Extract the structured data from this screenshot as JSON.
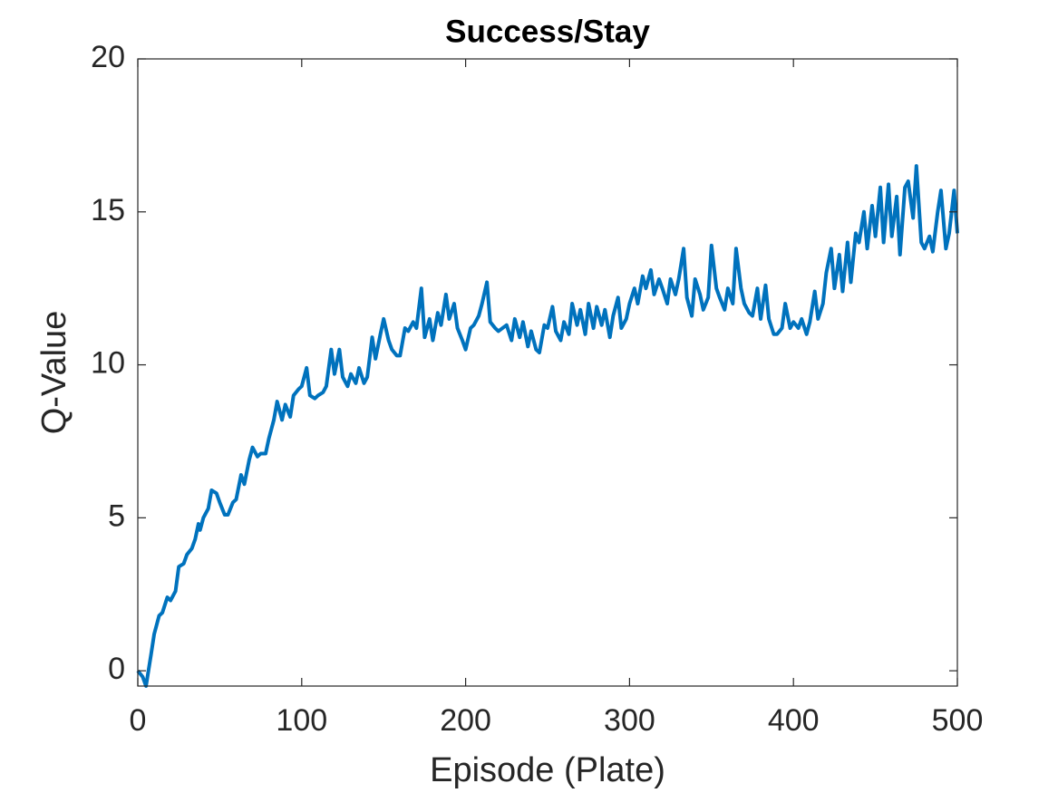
{
  "chart_data": {
    "type": "line",
    "title": "Success/Stay",
    "xlabel": "Episode (Plate)",
    "ylabel": "Q-Value",
    "xlim": [
      0,
      500
    ],
    "ylim": [
      -0.5,
      20
    ],
    "xticks": [
      0,
      100,
      200,
      300,
      400,
      500
    ],
    "yticks": [
      0,
      5,
      10,
      15,
      20
    ],
    "box": true,
    "x": [
      0,
      3,
      5,
      8,
      10,
      13,
      15,
      18,
      20,
      23,
      25,
      28,
      30,
      33,
      35,
      37,
      38,
      40,
      43,
      45,
      48,
      50,
      53,
      55,
      58,
      60,
      63,
      65,
      68,
      70,
      73,
      75,
      78,
      80,
      83,
      85,
      88,
      90,
      93,
      95,
      98,
      100,
      103,
      105,
      108,
      110,
      113,
      115,
      118,
      120,
      123,
      125,
      128,
      130,
      133,
      135,
      138,
      140,
      143,
      145,
      148,
      150,
      153,
      155,
      158,
      160,
      163,
      165,
      168,
      170,
      173,
      175,
      178,
      180,
      183,
      185,
      188,
      190,
      193,
      195,
      198,
      200,
      203,
      205,
      208,
      210,
      213,
      215,
      218,
      220,
      225,
      228,
      230,
      233,
      235,
      238,
      240,
      243,
      245,
      248,
      250,
      253,
      255,
      258,
      260,
      263,
      265,
      268,
      270,
      273,
      275,
      278,
      280,
      283,
      285,
      288,
      290,
      293,
      295,
      298,
      300,
      303,
      305,
      308,
      310,
      313,
      315,
      318,
      320,
      323,
      325,
      328,
      330,
      333,
      335,
      338,
      340,
      343,
      345,
      348,
      350,
      353,
      355,
      358,
      360,
      363,
      365,
      368,
      370,
      373,
      375,
      378,
      380,
      383,
      385,
      388,
      390,
      393,
      395,
      398,
      400,
      403,
      405,
      408,
      410,
      413,
      415,
      418,
      420,
      423,
      425,
      428,
      430,
      433,
      435,
      438,
      440,
      443,
      445,
      448,
      450,
      453,
      455,
      458,
      460,
      463,
      465,
      468,
      470,
      473,
      475,
      478,
      480,
      483,
      485,
      488,
      490,
      493,
      495,
      498,
      500
    ],
    "series": [
      {
        "name": "Q-Value",
        "color": "#0072BD",
        "values": [
          0,
          -0.2,
          -0.5,
          0.5,
          1.2,
          1.8,
          1.9,
          2.4,
          2.3,
          2.6,
          3.4,
          3.5,
          3.8,
          4.0,
          4.3,
          4.8,
          4.6,
          5.0,
          5.3,
          5.9,
          5.8,
          5.5,
          5.1,
          5.1,
          5.5,
          5.6,
          6.4,
          6.1,
          6.9,
          7.3,
          7.0,
          7.1,
          7.1,
          7.6,
          8.2,
          8.8,
          8.2,
          8.7,
          8.3,
          9.0,
          9.2,
          9.3,
          9.9,
          9.0,
          8.9,
          9.0,
          9.1,
          9.3,
          10.5,
          9.7,
          10.5,
          9.6,
          9.3,
          9.7,
          9.4,
          9.9,
          9.4,
          9.6,
          10.9,
          10.2,
          11.0,
          11.5,
          10.8,
          10.5,
          10.3,
          10.3,
          11.2,
          11.1,
          11.4,
          11.2,
          12.5,
          10.9,
          11.5,
          10.8,
          11.7,
          11.3,
          12.3,
          11.5,
          12.0,
          11.2,
          10.8,
          10.5,
          11.2,
          11.3,
          11.6,
          12.0,
          12.7,
          11.4,
          11.2,
          11.1,
          11.3,
          10.8,
          11.5,
          10.9,
          11.4,
          10.6,
          11.1,
          10.5,
          10.4,
          11.3,
          11.2,
          11.9,
          11.1,
          10.8,
          11.4,
          11.0,
          12.0,
          11.3,
          11.8,
          11.0,
          12.0,
          11.2,
          11.9,
          11.3,
          11.8,
          10.9,
          11.6,
          12.2,
          11.2,
          11.5,
          12.0,
          12.5,
          12.0,
          12.9,
          12.5,
          13.1,
          12.3,
          12.8,
          12.5,
          12.0,
          12.8,
          12.3,
          12.8,
          13.8,
          12.2,
          11.6,
          12.8,
          12.3,
          11.8,
          12.2,
          13.9,
          12.5,
          12.2,
          11.8,
          12.5,
          12.0,
          13.8,
          12.5,
          12.0,
          11.7,
          11.6,
          12.5,
          11.5,
          12.6,
          11.5,
          11.0,
          11.0,
          11.2,
          12.0,
          11.2,
          11.4,
          11.2,
          11.5,
          11.0,
          11.4,
          12.4,
          11.5,
          12.0,
          13.0,
          13.8,
          12.5,
          13.6,
          12.4,
          14.0,
          12.7,
          14.3,
          14.0,
          15.0,
          13.8,
          15.2,
          14.2,
          15.8,
          14.0,
          15.9,
          14.2,
          15.5,
          13.6,
          15.8,
          16.0,
          14.8,
          16.5,
          14.0,
          13.8,
          14.2,
          13.7,
          15.0,
          15.7,
          13.8,
          14.3,
          15.7,
          14.3
        ]
      }
    ]
  }
}
